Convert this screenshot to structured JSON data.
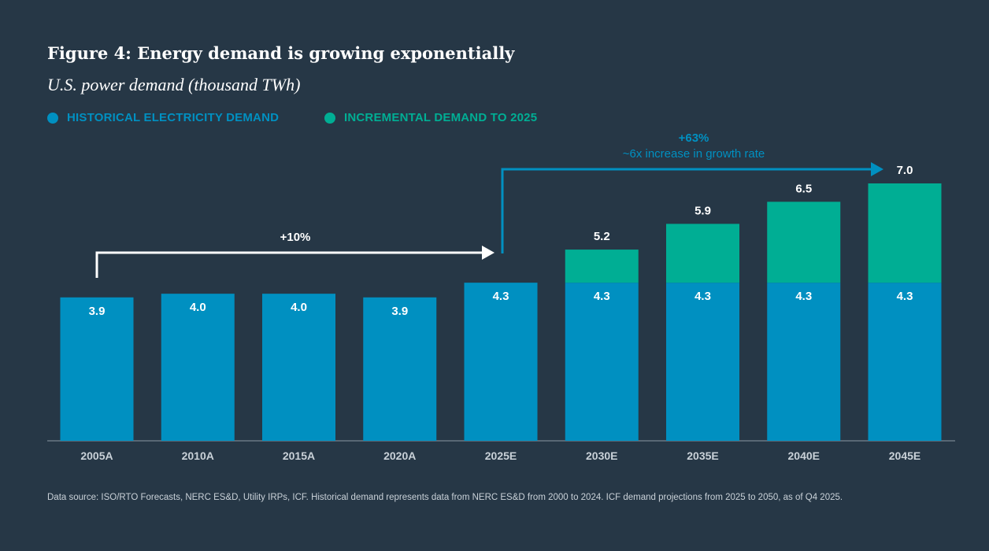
{
  "title": "Figure 4: Energy demand is growing exponentially",
  "subtitle": "U.S. power demand (thousand TWh)",
  "legend": [
    {
      "label": "HISTORICAL ELECTRICITY DEMAND",
      "color": "#0090c1"
    },
    {
      "label": "INCREMENTAL DEMAND TO 2025",
      "color": "#00ae94"
    }
  ],
  "annotations": {
    "left_arrow_label": "+10%",
    "right_arrow_label": "+63%",
    "right_arrow_sublabel": "~6x increase in growth rate"
  },
  "source": "Data source: ISO/RTO Forecasts, NERC ES&D, Utility IRPs, ICF. Historical demand represents data from NERC ES&D from 2000 to 2024. ICF demand projections from 2025 to 2050, as of Q4 2025.",
  "chart_data": {
    "type": "bar",
    "stacked": true,
    "categories": [
      "2005A",
      "2010A",
      "2015A",
      "2020A",
      "2025E",
      "2030E",
      "2035E",
      "2040E",
      "2045E"
    ],
    "series": [
      {
        "name": "HISTORICAL ELECTRICITY DEMAND",
        "values": [
          3.9,
          4.0,
          4.0,
          3.9,
          4.3,
          4.3,
          4.3,
          4.3,
          4.3
        ],
        "labels": [
          "3.9",
          "4.0",
          "4.0",
          "3.9",
          "4.3",
          "4.3",
          "4.3",
          "4.3",
          "4.3"
        ],
        "color": "#0090c1"
      },
      {
        "name": "INCREMENTAL DEMAND TO 2025",
        "values": [
          0,
          0,
          0,
          0,
          0,
          0.9,
          1.6,
          2.2,
          2.7
        ],
        "color": "#00ae94"
      }
    ],
    "totals": [
      "",
      "",
      "",
      "",
      "",
      "5.2",
      "5.9",
      "6.5",
      "7.0"
    ],
    "ylim": [
      0,
      7.0
    ],
    "grid": false
  }
}
